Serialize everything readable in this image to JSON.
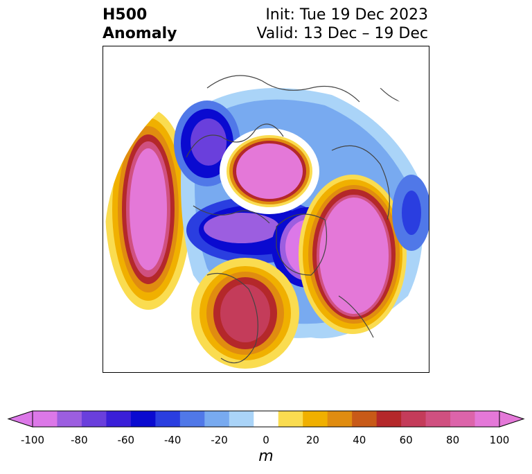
{
  "header": {
    "title_line1": "H500",
    "title_line2": "Anomaly",
    "init": "Init: Tue 19 Dec 2023",
    "valid": "Valid: 13 Dec – 19 Dec"
  },
  "colorbar": {
    "unit": "m",
    "ticks": [
      "-100",
      "-80",
      "-60",
      "-40",
      "-20",
      "0",
      "20",
      "40",
      "60",
      "80",
      "100"
    ],
    "tick_values": [
      -100,
      -80,
      -60,
      -40,
      -20,
      0,
      20,
      40,
      60,
      80,
      100
    ],
    "levels": [
      -100,
      -90,
      -80,
      -70,
      -60,
      -50,
      -40,
      -30,
      -20,
      -10,
      10,
      20,
      30,
      40,
      50,
      60,
      70,
      80,
      90,
      100
    ],
    "colors": [
      "#dc78e8",
      "#9c5ee0",
      "#6a3fdc",
      "#3a1fd8",
      "#0a0ad0",
      "#2a3ee0",
      "#5078e8",
      "#78aaf0",
      "#aad4f8",
      "#ffffff",
      "#fadc50",
      "#f0b000",
      "#e08c10",
      "#c85a18",
      "#b4282a",
      "#c43c5a",
      "#d05080",
      "#dc64aa",
      "#e478d8"
    ],
    "under_color": "#dc78e8",
    "over_color": "#e478d8"
  },
  "map": {
    "projection": "north-polar-stereographic",
    "coastline_color": "#444444",
    "anomalies": [
      {
        "region": "North Pacific / Bering",
        "sign": "positive",
        "peak_m": 100
      },
      {
        "region": "Alaska / NW Canada",
        "sign": "negative",
        "peak_m": -100
      },
      {
        "region": "Central Siberia",
        "sign": "positive",
        "peak_m": 100
      },
      {
        "region": "Eastern Europe / Western Russia",
        "sign": "positive",
        "peak_m": 100
      },
      {
        "region": "Greenland / North Atlantic",
        "sign": "negative",
        "peak_m": -100
      },
      {
        "region": "Central / Eastern United States",
        "sign": "positive",
        "peak_m": 60
      },
      {
        "region": "Western Europe / Eastern Atlantic",
        "sign": "negative",
        "peak_m": -60
      }
    ]
  }
}
